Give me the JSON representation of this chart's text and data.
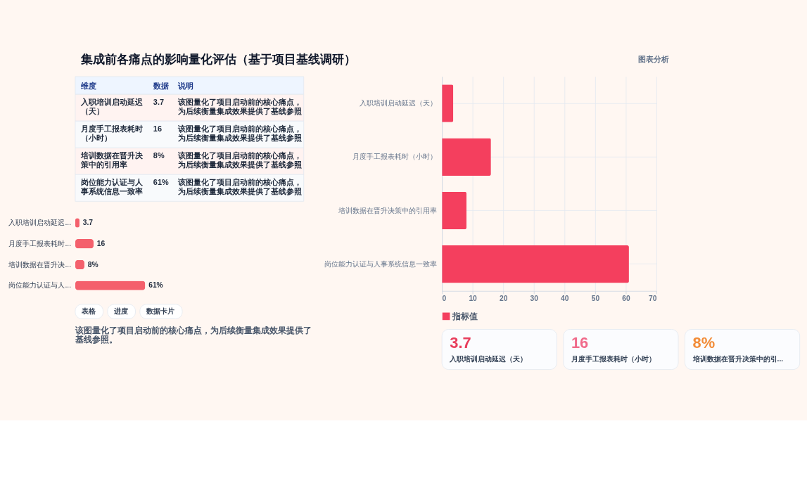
{
  "chart_data": [
    {
      "type": "bar",
      "orientation": "horizontal",
      "title": "集成前各痛点的影响量化评估（基于项目基线调研）",
      "subtitle": "图表分析",
      "categories": [
        "入职培训启动延迟（天）",
        "月度手工报表耗时（小时）",
        "培训数据在晋升决策中的引用率",
        "岗位能力认证与人事系统信息一致率"
      ],
      "series": [
        {
          "name": "指标值",
          "color": "#f43f5e",
          "values": [
            3.7,
            16,
            8,
            61
          ]
        }
      ],
      "xlim": [
        0,
        70
      ],
      "xticks": [
        0,
        10,
        20,
        30,
        40,
        50,
        60,
        70
      ],
      "grid": true,
      "legend": "bottom"
    },
    {
      "type": "other",
      "annotations": [
        "维度",
        "数据",
        "说明",
        "入职培训启动延迟（天）",
        "3.7",
        "该图量化了项目启动前的核心痛点，为后续衡量集成效果提供了基线参照",
        "月度手工报表耗时（小时）",
        "16",
        "该图量化了项目启动前的核心痛点，为后续衡量集成效果提供了基线参照",
        "培训数据在晋升决策中的引用率",
        "8%",
        "该图量化了项目启动前的核心痛点，为后续衡量集成效果提供了基线参照",
        "岗位能力认证与人事系统信息一致率",
        "61%",
        "该图量化了项目启动前的核心痛点，为后续衡量集成效果提供了基线参照"
      ]
    },
    {
      "type": "bar",
      "orientation": "horizontal",
      "categories": [
        "入职培训启动延迟...",
        "月度手工报表耗时...",
        "培训数据在晋升决...",
        "岗位能力认证与人..."
      ],
      "values": [
        3.7,
        16,
        8,
        61
      ],
      "value_labels": [
        "3.7",
        "16",
        "8%",
        "61%"
      ],
      "color": "#f4606c"
    },
    {
      "type": "other",
      "annotations": [
        "3.7",
        "入职培训启动延迟（天）",
        "16",
        "月度手工报表耗时（小时）",
        "8%",
        "培训数据在晋升决策中的引..."
      ],
      "colors": [
        "#e83e5c",
        "#f06a8a",
        "#f28c38"
      ]
    },
    {
      "type": "other",
      "annotations": [
        "表格",
        "进度",
        "数据卡片",
        "该图量化了项目启动前的核心痛点，为后续衡量集成效果提供了基线参照。"
      ]
    }
  ]
}
